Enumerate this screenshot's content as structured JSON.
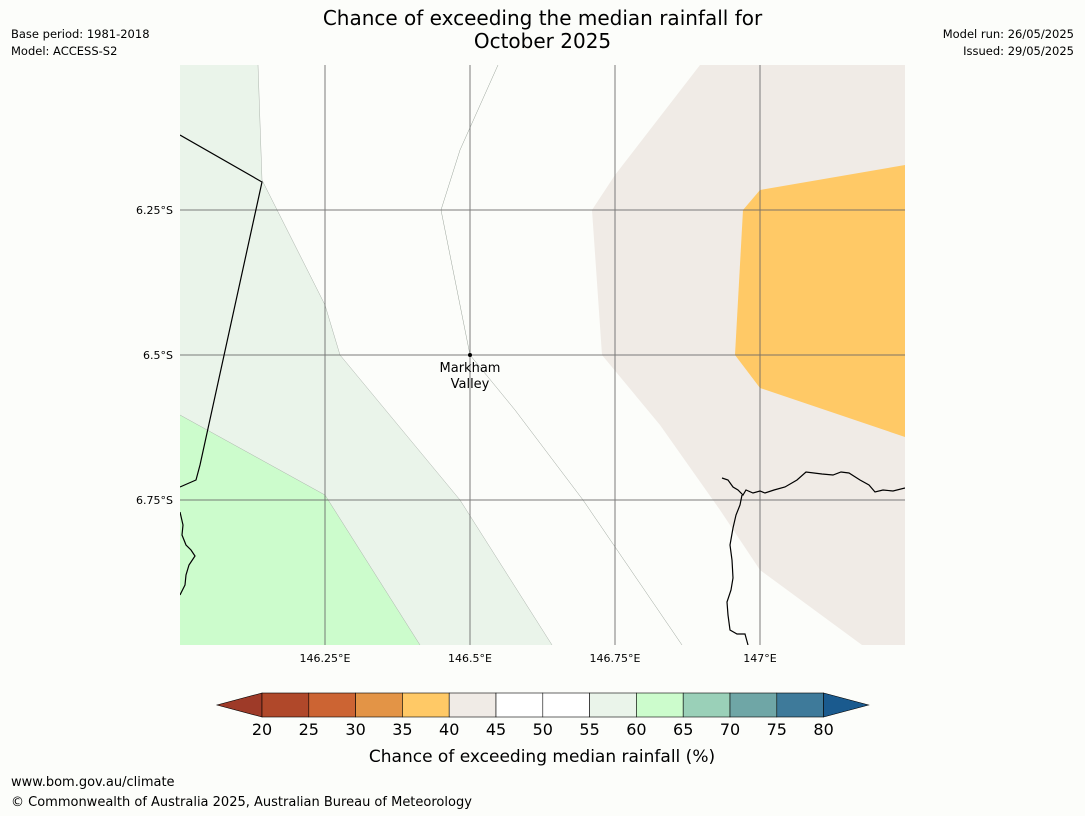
{
  "header": {
    "title_line1": "Chance of exceeding the median rainfall for",
    "title_line2": "October 2025",
    "base_period": "Base period: 1981-2018",
    "model": "Model: ACCESS-S2",
    "model_run": "Model run: 26/05/2025",
    "issued": "Issued: 29/05/2025"
  },
  "map": {
    "lat_labels": [
      "6.25°S",
      "6.5°S",
      "6.75°S"
    ],
    "lon_labels": [
      "146.25°E",
      "146.5°E",
      "146.75°E",
      "147°E"
    ],
    "place": {
      "name_line1": "Markham",
      "name_line2": "Valley"
    },
    "region_colors": {
      "35-40": "#ffc966",
      "40-45": "#f0ebe6",
      "45-55": "#fcfdfa",
      "55-60": "#eaf4ea",
      "60-65": "#ccfccc"
    }
  },
  "colorbar": {
    "ticks": [
      "20",
      "25",
      "30",
      "35",
      "40",
      "45",
      "50",
      "55",
      "60",
      "65",
      "70",
      "75",
      "80"
    ],
    "colors": [
      "#9e3a28",
      "#b0482a",
      "#cc6433",
      "#e39446",
      "#ffc966",
      "#f0ebe6",
      "#ffffff",
      "#ffffff",
      "#eaf4ea",
      "#ccfccc",
      "#9ad0b8",
      "#6fa6a6",
      "#3e7a9a",
      "#1a5a8e"
    ],
    "label": "Chance of exceeding median rainfall (%)"
  },
  "footer": {
    "url": "www.bom.gov.au/climate",
    "copyright": "© Commonwealth of Australia 2025, Australian Bureau of Meteorology"
  }
}
